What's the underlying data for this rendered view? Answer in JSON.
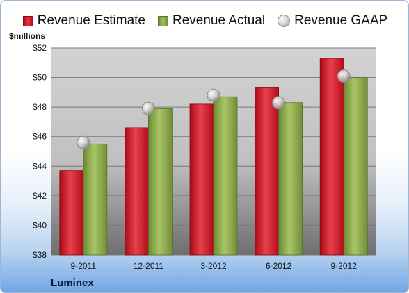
{
  "colors": {
    "estimate": "#d22430",
    "actual": "#8cab4c",
    "gaap": "#c8c8c8",
    "plot_background": "#c4c4c4"
  },
  "legend": {
    "estimate": "Revenue Estimate",
    "actual": "Revenue Actual",
    "gaap": "Revenue GAAP"
  },
  "company": "Luminex",
  "chart_data": {
    "type": "bar",
    "title": "",
    "xlabel": "",
    "ylabel": "$millions",
    "categories": [
      "9-2011",
      "12-2011",
      "3-2012",
      "6-2012",
      "9-2012"
    ],
    "ylim": [
      38,
      52
    ],
    "yticks": [
      38,
      40,
      42,
      44,
      46,
      48,
      50,
      52
    ],
    "ytick_labels": [
      "$38",
      "$40",
      "$42",
      "$44",
      "$46",
      "$48",
      "$50",
      "$52"
    ],
    "grid": true,
    "legend_position": "top",
    "series": [
      {
        "name": "Revenue Estimate",
        "type": "bar",
        "values": [
          43.7,
          46.6,
          48.2,
          49.3,
          51.3
        ]
      },
      {
        "name": "Revenue Actual",
        "type": "bar",
        "values": [
          45.5,
          47.9,
          48.7,
          48.3,
          50.0
        ]
      },
      {
        "name": "Revenue GAAP",
        "type": "scatter",
        "values": [
          45.6,
          47.9,
          48.8,
          48.3,
          50.1
        ]
      }
    ]
  }
}
